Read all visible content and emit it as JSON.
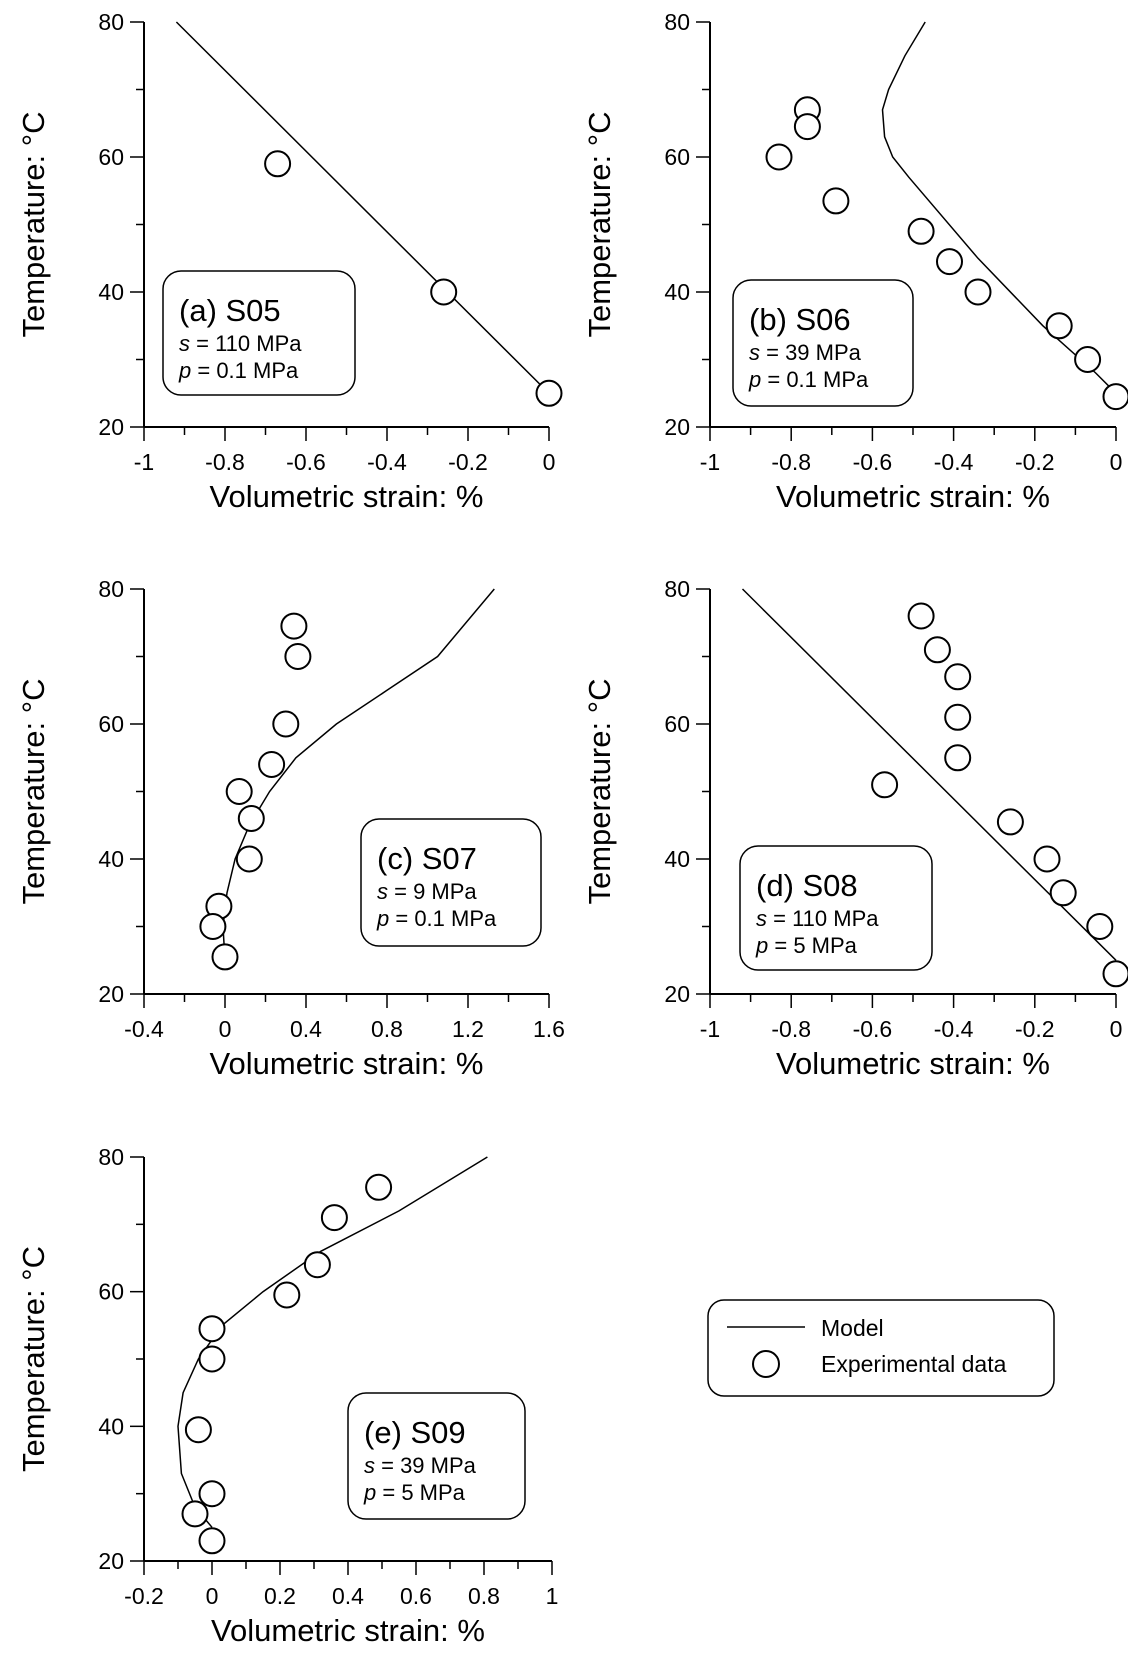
{
  "legend": {
    "entries": [
      {
        "label": "Model",
        "marker": "line"
      },
      {
        "label": "Experimental data",
        "marker": "circle"
      }
    ]
  },
  "chart_data": [
    {
      "id": "a",
      "type": "scatter",
      "xlabel": "Volumetric strain: %",
      "ylabel": "Temperature: °C",
      "xlim": [
        -1,
        0
      ],
      "ylim": [
        20,
        80
      ],
      "xticks": [
        "-1",
        "-0.8",
        "-0.6",
        "-0.4",
        "-0.2",
        "0"
      ],
      "yticks": [
        "20",
        "40",
        "60",
        "80"
      ],
      "annotation": {
        "title": "(a) S05",
        "s_label": "s",
        "s_value": " = 110 MPa",
        "p_label": "p",
        "p_value": " = 0.1 MPa"
      },
      "series": [
        {
          "name": "Model",
          "kind": "line",
          "x": [
            -0.92,
            0
          ],
          "y": [
            80,
            25
          ]
        },
        {
          "name": "Experimental data",
          "kind": "points",
          "x": [
            -0.67,
            -0.26,
            0
          ],
          "y": [
            59,
            40,
            25
          ]
        }
      ]
    },
    {
      "id": "b",
      "type": "scatter",
      "xlabel": "Volumetric strain: %",
      "ylabel": "Temperature: °C",
      "xlim": [
        -1,
        0
      ],
      "ylim": [
        20,
        80
      ],
      "xticks": [
        "-1",
        "-0.8",
        "-0.6",
        "-0.4",
        "-0.2",
        "0"
      ],
      "yticks": [
        "20",
        "40",
        "60",
        "80"
      ],
      "annotation": {
        "title": "(b) S06",
        "s_label": "s",
        "s_value": " = 39 MPa",
        "p_label": "p",
        "p_value": " = 0.1 MPa"
      },
      "series": [
        {
          "name": "Model",
          "kind": "line",
          "x": [
            -0.47,
            -0.52,
            -0.56,
            -0.575,
            -0.57,
            -0.55,
            -0.51,
            -0.34,
            -0.18,
            -0.05,
            0
          ],
          "y": [
            80,
            75,
            70,
            67,
            63,
            60,
            57,
            45,
            35,
            28,
            25
          ]
        },
        {
          "name": "Experimental data",
          "kind": "points",
          "x": [
            -0.83,
            -0.76,
            -0.76,
            -0.69,
            -0.48,
            -0.41,
            -0.34,
            -0.14,
            -0.07,
            0
          ],
          "y": [
            60,
            67,
            64.5,
            53.5,
            49,
            44.5,
            40,
            35,
            30,
            24.5
          ]
        }
      ]
    },
    {
      "id": "c",
      "type": "scatter",
      "xlabel": "Volumetric strain: %",
      "ylabel": "Temperature: °C",
      "xlim": [
        -0.4,
        1.6
      ],
      "ylim": [
        20,
        80
      ],
      "xticks": [
        "-0.4",
        "0",
        "0.4",
        "0.8",
        "1.2",
        "1.6"
      ],
      "yticks": [
        "20",
        "40",
        "60",
        "80"
      ],
      "annotation": {
        "title": "(c) S07",
        "s_label": "s",
        "s_value": " = 9 MPa",
        "p_label": "p",
        "p_value": " = 0.1 MPa"
      },
      "series": [
        {
          "name": "Model",
          "kind": "line",
          "x": [
            0,
            -0.01,
            0.01,
            0.05,
            0.12,
            0.22,
            0.35,
            0.55,
            0.8,
            1.05,
            1.33
          ],
          "y": [
            25,
            30,
            35,
            40,
            45,
            50,
            55,
            60,
            65,
            70,
            80
          ]
        },
        {
          "name": "Experimental data",
          "kind": "points",
          "x": [
            0.34,
            0.36,
            0.3,
            0.23,
            0.07,
            0.13,
            0.12,
            -0.03,
            -0.06,
            0
          ],
          "y": [
            74.5,
            70,
            60,
            54,
            50,
            46,
            40,
            33,
            30,
            25.5
          ]
        }
      ]
    },
    {
      "id": "d",
      "type": "scatter",
      "xlabel": "Volumetric strain: %",
      "ylabel": "Temperature: °C",
      "xlim": [
        -1,
        0
      ],
      "ylim": [
        20,
        80
      ],
      "xticks": [
        "-1",
        "-0.8",
        "-0.6",
        "-0.4",
        "-0.2",
        "0"
      ],
      "yticks": [
        "20",
        "40",
        "60",
        "80"
      ],
      "annotation": {
        "title": "(d) S08",
        "s_label": "s",
        "s_value": " = 110 MPa",
        "p_label": "p",
        "p_value": " = 5 MPa"
      },
      "series": [
        {
          "name": "Model",
          "kind": "line",
          "x": [
            -0.92,
            0
          ],
          "y": [
            80,
            25
          ]
        },
        {
          "name": "Experimental data",
          "kind": "points",
          "x": [
            -0.48,
            -0.44,
            -0.39,
            -0.39,
            -0.39,
            -0.57,
            -0.26,
            -0.17,
            -0.13,
            -0.04,
            0
          ],
          "y": [
            76,
            71,
            67,
            61,
            55,
            51,
            45.5,
            40,
            35,
            30,
            23
          ]
        }
      ]
    },
    {
      "id": "e",
      "type": "scatter",
      "xlabel": "Volumetric strain: %",
      "ylabel": "Temperature: °C",
      "xlim": [
        -0.2,
        1
      ],
      "ylim": [
        20,
        80
      ],
      "xticks": [
        "-0.2",
        "0",
        "0.2",
        "0.4",
        "0.6",
        "0.8",
        "1"
      ],
      "yticks": [
        "20",
        "40",
        "60",
        "80"
      ],
      "annotation": {
        "title": "(e) S09",
        "s_label": "s",
        "s_value": " = 39 MPa",
        "p_label": "p",
        "p_value": " = 5 MPa"
      },
      "series": [
        {
          "name": "Model",
          "kind": "line",
          "x": [
            0,
            -0.05,
            -0.09,
            -0.1,
            -0.085,
            -0.04,
            0.03,
            0.15,
            0.32,
            0.55,
            0.81
          ],
          "y": [
            25,
            28,
            33,
            40,
            45,
            50,
            55,
            60,
            66,
            72,
            80
          ]
        },
        {
          "name": "Experimental data",
          "kind": "points",
          "x": [
            0.49,
            0.36,
            0.31,
            0.22,
            0,
            0,
            -0.04,
            0,
            -0.05,
            0
          ],
          "y": [
            75.5,
            71,
            64,
            59.5,
            54.5,
            50,
            39.5,
            30,
            27,
            23
          ]
        }
      ]
    }
  ]
}
